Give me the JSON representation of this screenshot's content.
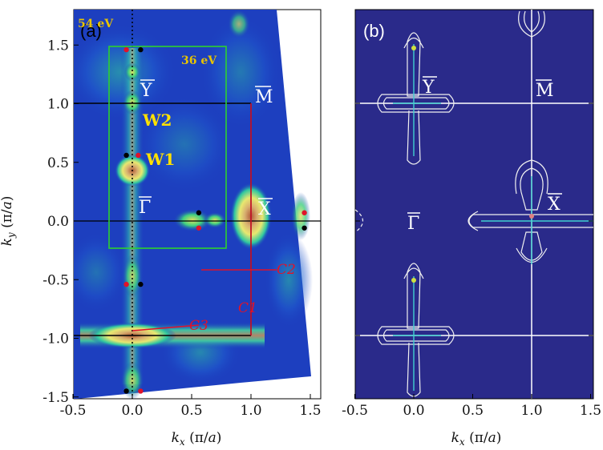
{
  "chart_data": [
    {
      "type": "heatmap",
      "panel": "(a)",
      "xlabel": "k_x (π/a)",
      "ylabel": "k_y (π/a)",
      "xlim": [
        -0.5,
        1.55
      ],
      "ylim": [
        -1.55,
        1.8
      ],
      "xticks": [
        "-0.5",
        "0.0",
        "0.5",
        "1.0",
        "1.5"
      ],
      "yticks": [
        "1.5",
        "1.0",
        "0.5",
        "0.0",
        "-0.5",
        "-1.0",
        "-1.5"
      ],
      "annotations": {
        "energy_outer": "54 eV",
        "energy_inner": "36 eV",
        "Y": "Y",
        "M": "M",
        "X": "X",
        "G": "Γ",
        "W1": "W1",
        "W2": "W2",
        "C1": "C1",
        "C2": "C2",
        "C3": "C3"
      },
      "red_points": [
        [
          -0.05,
          1.46
        ],
        [
          0.05,
          0.56
        ],
        [
          -0.05,
          -0.54
        ],
        [
          0.07,
          -1.45
        ],
        [
          0.56,
          -0.06
        ],
        [
          1.45,
          0.07
        ]
      ],
      "black_points": [
        [
          0.07,
          1.46
        ],
        [
          -0.05,
          0.56
        ],
        [
          0.07,
          -0.54
        ],
        [
          -0.05,
          -1.45
        ],
        [
          0.56,
          0.07
        ],
        [
          1.45,
          -0.06
        ]
      ]
    },
    {
      "type": "heatmap",
      "panel": "(b)",
      "xlabel": "k_x (π/a)",
      "xlim": [
        -0.5,
        1.55
      ],
      "ylim": [
        -1.55,
        1.8
      ],
      "xticks": [
        "-0.5",
        "0.0",
        "0.5",
        "1.0",
        "1.5"
      ],
      "annotations": {
        "Y": "Y",
        "M": "M",
        "X": "X",
        "G": "Γ"
      }
    }
  ],
  "colors": {
    "background_a": "#1a2fa8",
    "background_b": "#2a2a8a",
    "box_green": "#2ed12e",
    "cut_red": "#e0122a"
  }
}
